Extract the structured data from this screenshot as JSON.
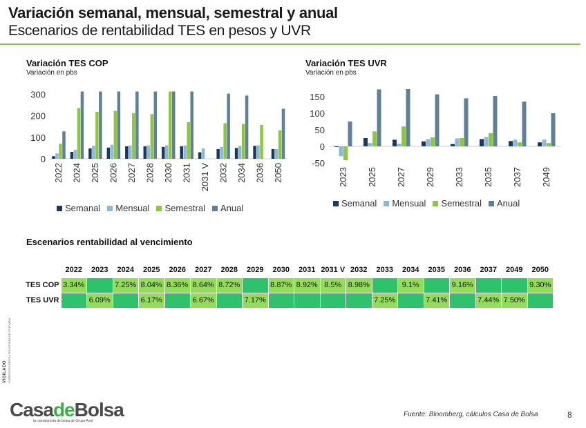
{
  "header": {
    "title": "Variación semanal, mensual, semestral y anual",
    "subtitle": "Escenarios de rentabilidad TES en pesos y UVR"
  },
  "colors": {
    "semanal": "#1b3a57",
    "mensual": "#8db8d8",
    "semestral": "#8dc63f",
    "anual": "#5f8096",
    "rule": "#8dc63f",
    "cell_green": "#2ec26c",
    "cell_light": "#93dc5c"
  },
  "chart_data": [
    {
      "type": "bar",
      "title": "Variación TES COP",
      "subtitle": "Variación en pbs",
      "categories": [
        "2022",
        "2024",
        "2025",
        "2026",
        "2027",
        "2028",
        "2030",
        "2031",
        "2031 V",
        "2032",
        "2034",
        "2036",
        "2050"
      ],
      "series": [
        {
          "name": "Semanal",
          "values": [
            12,
            32,
            48,
            52,
            58,
            58,
            55,
            58,
            30,
            45,
            50,
            60,
            45
          ]
        },
        {
          "name": "Mensual",
          "values": [
            25,
            42,
            60,
            65,
            62,
            62,
            62,
            62,
            48,
            55,
            60,
            62,
            45
          ]
        },
        {
          "name": "Semestral",
          "values": [
            70,
            235,
            218,
            222,
            212,
            207,
            312,
            170,
            0,
            165,
            162,
            157,
            132
          ]
        },
        {
          "name": "Anual",
          "values": [
            127,
            312,
            312,
            312,
            312,
            312,
            312,
            312,
            0,
            302,
            293,
            0,
            232
          ]
        }
      ],
      "ylim": [
        0,
        320
      ],
      "yticks": [
        0,
        100,
        200,
        300
      ],
      "legend": "bottom"
    },
    {
      "type": "bar",
      "title": "Variación TES UVR",
      "subtitle": "Variación en pbs",
      "categories": [
        "2023",
        "2025",
        "2027",
        "2029",
        "2033",
        "2035",
        "2037",
        "2049"
      ],
      "series": [
        {
          "name": "Semanal",
          "values": [
            -2,
            25,
            20,
            15,
            7,
            22,
            16,
            12
          ]
        },
        {
          "name": "Mensual",
          "values": [
            -30,
            10,
            8,
            22,
            24,
            28,
            20,
            20
          ]
        },
        {
          "name": "Semestral",
          "values": [
            -42,
            45,
            60,
            27,
            25,
            40,
            12,
            10
          ]
        },
        {
          "name": "Anual",
          "values": [
            75,
            172,
            173,
            157,
            145,
            152,
            135,
            100
          ]
        }
      ],
      "ylim": [
        -50,
        175
      ],
      "yticks": [
        -50,
        0,
        50,
        100,
        150
      ],
      "legend": "bottom"
    }
  ],
  "table": {
    "title": "Escenarios rentabilidad al vencimiento",
    "years": [
      "2022",
      "2023",
      "2024",
      "2025",
      "2026",
      "2027",
      "2028",
      "2029",
      "2030",
      "2031",
      "2031 V",
      "2032",
      "2033",
      "2034",
      "2035",
      "2036",
      "2037",
      "2049",
      "2050"
    ],
    "rows": [
      {
        "label": "TES COP",
        "cells": [
          {
            "value": "3.34%",
            "tone": "light"
          },
          {
            "value": "",
            "tone": "green"
          },
          {
            "value": "7.25%",
            "tone": "light"
          },
          {
            "value": "8.04%",
            "tone": "light"
          },
          {
            "value": "8.36%",
            "tone": "light"
          },
          {
            "value": "8.64%",
            "tone": "light"
          },
          {
            "value": "8.72%",
            "tone": "light"
          },
          {
            "value": "",
            "tone": "green"
          },
          {
            "value": "8.87%",
            "tone": "light"
          },
          {
            "value": "8.92%",
            "tone": "light"
          },
          {
            "value": "8.5%",
            "tone": "light"
          },
          {
            "value": "8.98%",
            "tone": "light"
          },
          {
            "value": "",
            "tone": "green"
          },
          {
            "value": "9.1%",
            "tone": "light"
          },
          {
            "value": "",
            "tone": "green"
          },
          {
            "value": "9.16%",
            "tone": "light"
          },
          {
            "value": "",
            "tone": "green"
          },
          {
            "value": "",
            "tone": "green"
          },
          {
            "value": "9.30%",
            "tone": "light"
          }
        ]
      },
      {
        "label": "TES UVR",
        "cells": [
          {
            "value": "",
            "tone": "green"
          },
          {
            "value": "6.09%",
            "tone": "light"
          },
          {
            "value": "",
            "tone": "green"
          },
          {
            "value": "6.17%",
            "tone": "light"
          },
          {
            "value": "",
            "tone": "green"
          },
          {
            "value": "6.67%",
            "tone": "light"
          },
          {
            "value": "",
            "tone": "green"
          },
          {
            "value": "7.17%",
            "tone": "light"
          },
          {
            "value": "",
            "tone": "green"
          },
          {
            "value": "",
            "tone": "green"
          },
          {
            "value": "",
            "tone": "green"
          },
          {
            "value": "",
            "tone": "green"
          },
          {
            "value": "7.25%",
            "tone": "light"
          },
          {
            "value": "",
            "tone": "green"
          },
          {
            "value": "7.41%",
            "tone": "light"
          },
          {
            "value": "",
            "tone": "green"
          },
          {
            "value": "7.44%",
            "tone": "light"
          },
          {
            "value": "7.50%",
            "tone": "light"
          },
          {
            "value": "",
            "tone": "green"
          }
        ]
      }
    ]
  },
  "footer": {
    "logo_casa": "Casa",
    "logo_de": "de",
    "logo_bolsa": "Bolsa",
    "logo_tagline": "la comisionista de bolsa de Grupo Aval",
    "source": "Fuente: Bloomberg, cálculos Casa de Bolsa",
    "page_number": "8",
    "vigilado": "VIGILADO",
    "vigilado_sub": "SUPERINTENDENCIA FINANCIERA DE COLOMBIA"
  }
}
